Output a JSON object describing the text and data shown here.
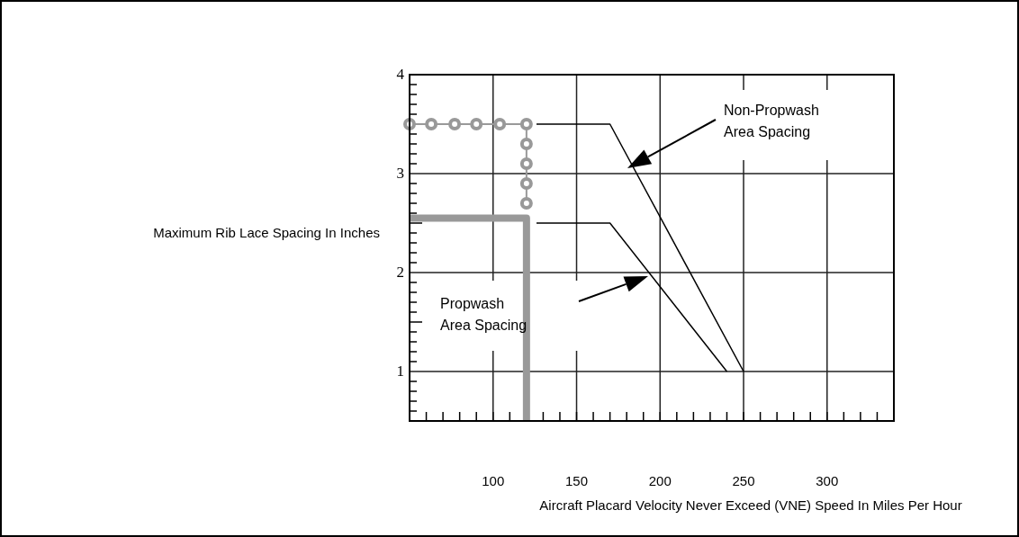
{
  "chart_data": {
    "type": "line",
    "xlabel": "Aircraft Placard Velocity Never Exceed (VNE) Speed In Miles Per Hour",
    "ylabel": "Maximum Rib Lace Spacing In Inches",
    "xlim": [
      50,
      340
    ],
    "ylim": [
      0.5,
      4
    ],
    "xticks": [
      {
        "value": 60,
        "label": null
      },
      {
        "value": 70,
        "label": null
      },
      {
        "value": 80,
        "label": null
      },
      {
        "value": 90,
        "label": null
      },
      100,
      {
        "value": 110,
        "label": null
      },
      {
        "value": 120,
        "label": null
      },
      {
        "value": 130,
        "label": null
      },
      {
        "value": 140,
        "label": null
      },
      150,
      {
        "value": 160,
        "label": null
      },
      {
        "value": 170,
        "label": null
      },
      {
        "value": 180,
        "label": null
      },
      {
        "value": 190,
        "label": null
      },
      200,
      {
        "value": 210,
        "label": null
      },
      {
        "value": 220,
        "label": null
      },
      {
        "value": 230,
        "label": null
      },
      {
        "value": 240,
        "label": null
      },
      250,
      {
        "value": 260,
        "label": null
      },
      {
        "value": 270,
        "label": null
      },
      {
        "value": 280,
        "label": null
      },
      {
        "value": 290,
        "label": null
      },
      300,
      {
        "value": 310,
        "label": null
      },
      {
        "value": 320,
        "label": null
      },
      {
        "value": 330,
        "label": null
      }
    ],
    "yticks": [
      {
        "value": 0.6,
        "label": null
      },
      {
        "value": 0.7,
        "label": null
      },
      {
        "value": 0.8,
        "label": null
      },
      {
        "value": 0.9,
        "label": null
      },
      1,
      {
        "value": 1.1,
        "label": null
      },
      {
        "value": 1.2,
        "label": null
      },
      {
        "value": 1.3,
        "label": null
      },
      {
        "value": 1.4,
        "label": null
      },
      {
        "value": 1.5,
        "label": null
      },
      {
        "value": 1.6,
        "label": null
      },
      {
        "value": 1.7,
        "label": null
      },
      {
        "value": 1.8,
        "label": null
      },
      {
        "value": 1.9,
        "label": null
      },
      2,
      {
        "value": 2.1,
        "label": null
      },
      {
        "value": 2.2,
        "label": null
      },
      {
        "value": 2.3,
        "label": null
      },
      {
        "value": 2.4,
        "label": null
      },
      {
        "value": 2.5,
        "label": null
      },
      {
        "value": 2.6,
        "label": null
      },
      {
        "value": 2.7,
        "label": null
      },
      {
        "value": 2.8,
        "label": null
      },
      {
        "value": 2.9,
        "label": null
      },
      3,
      {
        "value": 3.1,
        "label": null
      },
      {
        "value": 3.2,
        "label": null
      },
      {
        "value": 3.3,
        "label": null
      },
      {
        "value": 3.4,
        "label": null
      },
      {
        "value": 3.5,
        "label": null
      },
      {
        "value": 3.6,
        "label": null
      },
      {
        "value": 3.7,
        "label": null
      },
      {
        "value": 3.8,
        "label": null
      },
      {
        "value": 3.9,
        "label": null
      },
      4
    ],
    "grid": true,
    "marker": "none",
    "line_style": "solid",
    "series": [
      {
        "color": "#000000",
        "x": [
          126,
          170,
          250
        ],
        "values": [
          3.5,
          3.5,
          1
        ]
      },
      {
        "color": "#000000",
        "x": [
          126,
          170,
          240
        ],
        "values": [
          2.5,
          2.5,
          1
        ]
      },
      {
        "color": "#999999",
        "marker": "circle",
        "x": [
          50,
          63,
          77,
          90,
          104,
          120,
          120,
          120,
          120,
          120
        ],
        "values": [
          3.5,
          3.5,
          3.5,
          3.5,
          3.5,
          3.5,
          3.3,
          3.1,
          2.9,
          2.7
        ]
      },
      {
        "color": "#999999",
        "x": [
          50,
          120,
          120
        ],
        "values": [
          2.55,
          2.55,
          0.5
        ]
      }
    ],
    "annotations": [
      "Non-Propwash\nArea Spacing",
      "Propwash\nArea Spacing"
    ]
  }
}
